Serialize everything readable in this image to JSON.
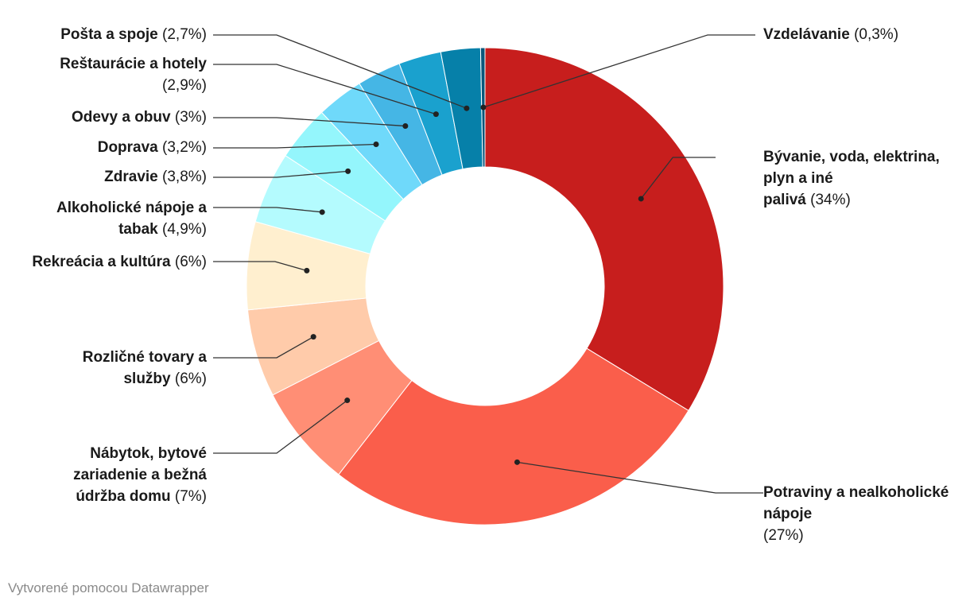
{
  "chart_data": {
    "type": "pie",
    "variant": "donut",
    "slices": [
      {
        "name": "Bývanie, voda, elektrina, plyn a iné palivá",
        "value": 34,
        "label_value": "(34%)",
        "color": "#c71e1d"
      },
      {
        "name": "Potraviny a nealkoholické nápoje",
        "value": 27,
        "label_value": "(27%)",
        "color": "#fa5e4b"
      },
      {
        "name": "Nábytok, bytové zariadenie a bežná údržba domu",
        "value": 7,
        "label_value": "(7%)",
        "color": "#ff8e75"
      },
      {
        "name": "Rozličné tovary a služby",
        "value": 6,
        "label_value": "(6%)",
        "color": "#ffcbaa"
      },
      {
        "name": "Rekreácia a kultúra",
        "value": 6,
        "label_value": "(6%)",
        "color": "#ffefcf"
      },
      {
        "name": "Alkoholické nápoje a tabak",
        "value": 4.9,
        "label_value": "(4,9%)",
        "color": "#b4fbfe"
      },
      {
        "name": "Zdravie",
        "value": 3.8,
        "label_value": "(3,8%)",
        "color": "#94f6fc"
      },
      {
        "name": "Doprava",
        "value": 3.2,
        "label_value": "(3,2%)",
        "color": "#6fd9fa"
      },
      {
        "name": "Odevy a obuv",
        "value": 3,
        "label_value": "(3%)",
        "color": "#45b6e5"
      },
      {
        "name": "Reštaurácie a hotely",
        "value": 2.9,
        "label_value": "(2,9%)",
        "color": "#1aa1ce"
      },
      {
        "name": "Pošta a spoje",
        "value": 2.7,
        "label_value": "(2,7%)",
        "color": "#0680a9"
      },
      {
        "name": "Vzdelávanie",
        "value": 0.3,
        "label_value": "(0,3%)",
        "color": "#09577b"
      }
    ]
  },
  "labels": {
    "bývanie": {
      "name": "Bývanie, voda, elektrina, plyn a iné",
      "name2": "palivá",
      "pct": "(34%)"
    },
    "potraviny": {
      "name": "Potraviny a nealkoholické nápoje",
      "pct": "(27%)"
    },
    "nabytok": {
      "name": "Nábytok, bytové zariadenie a bežná údržba domu",
      "pct": "(7%)"
    },
    "rozlicne": {
      "name": "Rozličné tovary a služby",
      "pct": "(6%)"
    },
    "rekreacia": {
      "name": "Rekreácia a kultúra",
      "pct": "(6%)"
    },
    "alkohol": {
      "name": "Alkoholické nápoje a tabak",
      "pct": "(4,9%)"
    },
    "zdravie": {
      "name": "Zdravie",
      "pct": "(3,8%)"
    },
    "doprava": {
      "name": "Doprava",
      "pct": "(3,2%)"
    },
    "odevy": {
      "name": "Odevy a obuv",
      "pct": "(3%)"
    },
    "restauracie": {
      "name": "Reštaurácie a hotely",
      "pct": "(2,9%)"
    },
    "posta": {
      "name": "Pošta a spoje",
      "pct": "(2,7%)"
    },
    "vzdelavanie": {
      "name": "Vzdelávanie",
      "pct": "(0,3%)"
    }
  },
  "credit": "Vytvorené pomocou Datawrapper"
}
